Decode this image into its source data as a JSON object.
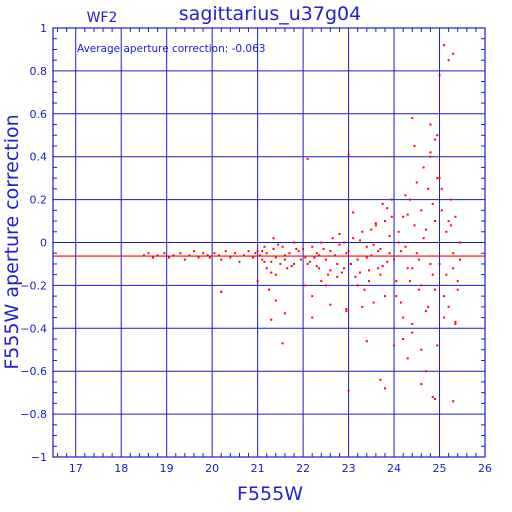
{
  "chart_data": {
    "type": "scatter",
    "title": "sagittarius_u37g04",
    "xlabel": "F555W",
    "ylabel": "F555W aperture correction",
    "chip_label": "WF2",
    "annotation": "Average aperture correction: -0.063",
    "xlim": [
      16.5,
      26
    ],
    "ylim": [
      -1,
      1
    ],
    "x_ticks": [
      17,
      18,
      19,
      20,
      21,
      22,
      23,
      24,
      25,
      26
    ],
    "y_ticks": [
      1,
      0.8,
      0.6,
      0.4,
      0.2,
      0,
      -0.2,
      -0.4,
      -0.6,
      -0.8,
      -1
    ],
    "y_tick_labels": [
      "1",
      "0.8",
      "0.6",
      "0.4",
      "0.2",
      "0",
      "−0.2",
      "−0.4",
      "−0.6",
      "−0.8",
      "−1"
    ],
    "grid": true,
    "average_line": -0.063,
    "colors": {
      "axes": "#1a1acc",
      "points": "#ff0000",
      "average_line": "#ff0000"
    },
    "series": [
      {
        "x": [
          18.5,
          18.6,
          18.7,
          18.8,
          18.95,
          19.05,
          19.15,
          19.3,
          19.4,
          19.5,
          19.6,
          19.7,
          19.8,
          19.9,
          19.95,
          20.05,
          20.15,
          20.2,
          20.3,
          20.4,
          20.5,
          20.6,
          20.7,
          20.8,
          20.9,
          20.95,
          20.2,
          21.0,
          21.05,
          21.1,
          21.15,
          21.2,
          21.3,
          21.35,
          21.4,
          21.5,
          21.55,
          21.6,
          21.7,
          21.75,
          21.8,
          21.9,
          21.95,
          21.2,
          21.4,
          21.1,
          21.0,
          21.3,
          21.6,
          21.8,
          21.25,
          21.45,
          21.35,
          21.15,
          21.65,
          21.85,
          22.0,
          22.05,
          22.1,
          22.2,
          22.3,
          22.35,
          22.4,
          22.5,
          22.55,
          22.6,
          22.7,
          22.75,
          22.8,
          22.9,
          22.95,
          22.15,
          22.45,
          22.65,
          22.85,
          22.25,
          22.5,
          22.9,
          22.75,
          22.3,
          22.6,
          22.2,
          22.4,
          22.8,
          22.05,
          22.35,
          23.0,
          23.05,
          23.1,
          23.2,
          23.25,
          23.3,
          23.4,
          23.45,
          23.5,
          23.6,
          23.65,
          23.7,
          23.8,
          23.85,
          23.9,
          23.95,
          23.15,
          23.35,
          23.55,
          23.75,
          23.1,
          23.3,
          23.5,
          23.7,
          23.9,
          23.2,
          23.4,
          23.6,
          23.8,
          23.25,
          23.45,
          23.65,
          23.85,
          23.05,
          23.55,
          23.75,
          23.95,
          24.0,
          24.05,
          24.1,
          24.15,
          24.2,
          24.25,
          24.3,
          24.35,
          24.4,
          24.45,
          24.5,
          24.55,
          24.6,
          24.65,
          24.7,
          24.75,
          24.8,
          24.85,
          24.9,
          24.95,
          24.05,
          24.15,
          24.25,
          24.35,
          24.45,
          24.55,
          24.65,
          24.75,
          24.85,
          24.95,
          24.1,
          24.2,
          24.3,
          24.4,
          24.5,
          24.6,
          24.7,
          24.8,
          24.9,
          24.0,
          24.2,
          24.4,
          24.6,
          24.8,
          25.0,
          25.05,
          25.1,
          25.15,
          25.2,
          25.25,
          25.3,
          25.35,
          25.4,
          25.45,
          25.0,
          25.1,
          25.2,
          25.3,
          25.4,
          25.05,
          25.15,
          25.25,
          25.35,
          25.45,
          24.8,
          24.7,
          24.9,
          25.1,
          25.3,
          25.2,
          25.35,
          25.0,
          24.95,
          24.85,
          21.3,
          20.2,
          21.4,
          21.6,
          21.55,
          22.6,
          22.95,
          22.2,
          22.1,
          23.0,
          23.4,
          22.95,
          23.0,
          23.7,
          23.8,
          24.0,
          24.3,
          24.4,
          24.6,
          24.9,
          25.3
        ],
        "y": [
          -0.06,
          -0.05,
          -0.07,
          -0.06,
          -0.05,
          -0.07,
          -0.06,
          -0.05,
          -0.08,
          -0.06,
          -0.04,
          -0.07,
          -0.05,
          -0.06,
          -0.07,
          -0.05,
          -0.06,
          -0.08,
          -0.04,
          -0.07,
          -0.05,
          -0.09,
          -0.06,
          -0.04,
          -0.07,
          -0.05,
          -0.23,
          -0.04,
          -0.06,
          -0.08,
          -0.02,
          -0.05,
          -0.09,
          -0.03,
          -0.07,
          -0.1,
          -0.02,
          -0.06,
          -0.05,
          -0.11,
          0.0,
          -0.04,
          -0.08,
          -0.12,
          -0.15,
          -0.04,
          -0.18,
          -0.14,
          -0.08,
          -0.1,
          -0.22,
          -0.01,
          0.02,
          -0.09,
          -0.12,
          -0.03,
          -0.03,
          -0.07,
          -0.1,
          -0.02,
          -0.05,
          -0.12,
          0.0,
          -0.08,
          -0.15,
          -0.04,
          -0.06,
          -0.1,
          -0.01,
          -0.12,
          -0.05,
          -0.09,
          -0.03,
          0.02,
          -0.14,
          -0.07,
          -0.2,
          0.0,
          -0.16,
          -0.11,
          -0.13,
          -0.25,
          -0.18,
          0.04,
          -0.2,
          -0.06,
          -0.04,
          -0.1,
          0.02,
          -0.08,
          -0.14,
          0.05,
          -0.02,
          -0.18,
          -0.06,
          0.08,
          -0.12,
          -0.03,
          0.1,
          -0.09,
          -0.05,
          0.12,
          -0.16,
          -0.22,
          -0.01,
          -0.11,
          0.14,
          -0.3,
          0.06,
          -0.15,
          0.03,
          -0.2,
          -0.07,
          0.09,
          -0.25,
          0.01,
          -0.13,
          -0.04,
          0.16,
          -0.1,
          -0.28,
          0.18,
          0.2,
          -0.08,
          -0.18,
          0.05,
          -0.28,
          0.12,
          -0.02,
          -0.12,
          0.2,
          -0.38,
          0.08,
          -0.05,
          -0.22,
          0.15,
          0.02,
          -0.32,
          0.25,
          -0.1,
          -0.15,
          0.1,
          0.3,
          -0.25,
          -0.04,
          0.22,
          -0.18,
          0.45,
          -0.08,
          0.35,
          -0.3,
          0.18,
          0.5,
          0.0,
          -0.35,
          0.13,
          -0.12,
          0.28,
          -0.2,
          0.06,
          0.42,
          -0.22,
          -0.4,
          -0.45,
          0.58,
          -0.5,
          0.4,
          -0.1,
          0.15,
          -0.25,
          0.05,
          -0.3,
          0.2,
          -0.05,
          0.12,
          -0.18,
          0.0,
          0.3,
          -0.35,
          0.1,
          -0.12,
          -0.22,
          0.25,
          -0.15,
          0.08,
          -0.38,
          -0.08,
          0.55,
          -0.6,
          0.48,
          0.92,
          0.88,
          0.85,
          -0.37,
          0.78,
          -0.48,
          -0.72,
          -0.36,
          -0.23,
          -0.27,
          -0.33,
          -0.47,
          -0.29,
          -0.32,
          -0.35,
          0.39,
          -0.69,
          -0.46,
          -0.31,
          0.41,
          -0.64,
          -0.68,
          -0.48,
          -0.54,
          -0.42,
          -0.66,
          -0.73,
          -0.74
        ]
      }
    ]
  }
}
